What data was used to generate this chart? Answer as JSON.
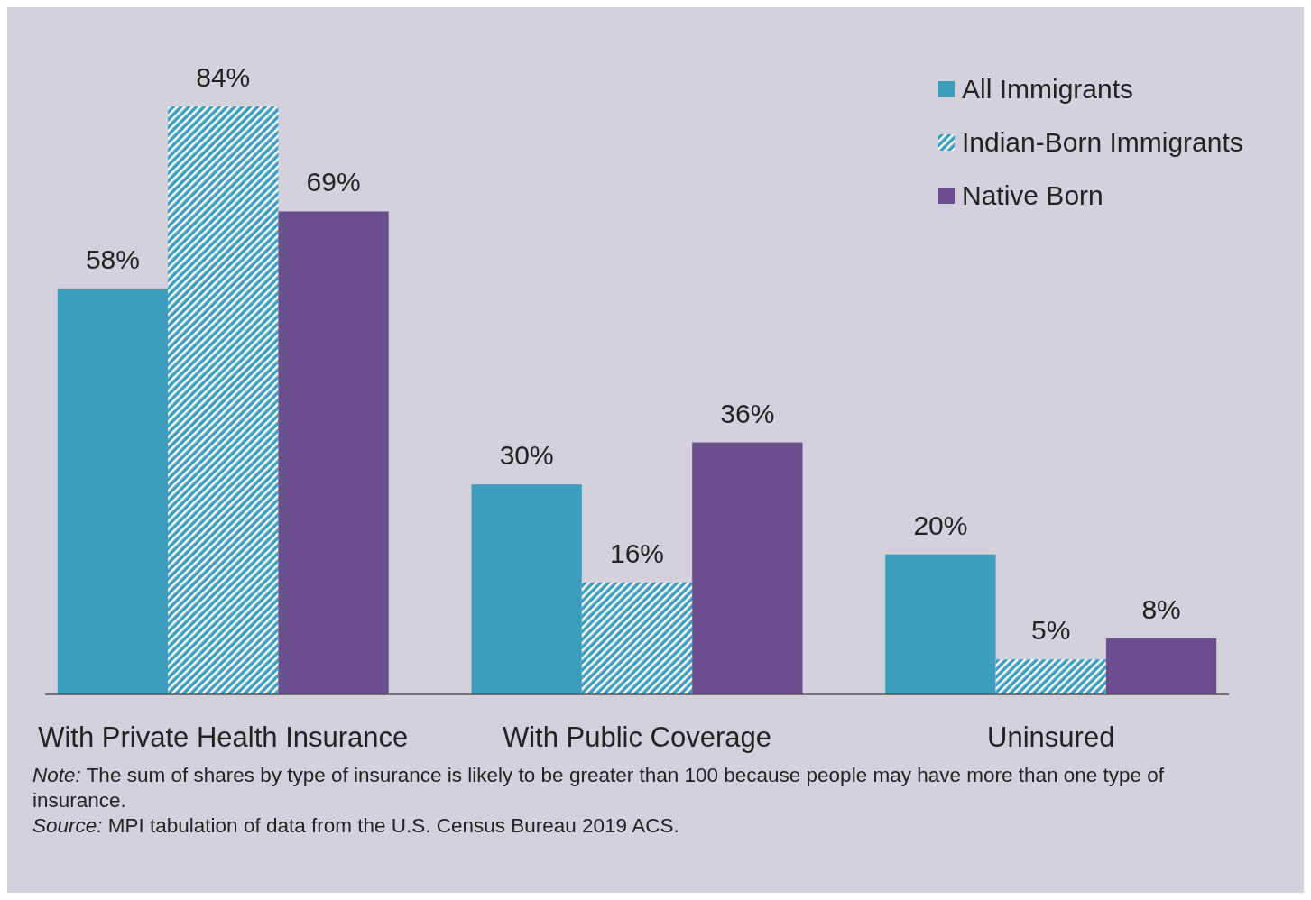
{
  "chart_data": {
    "type": "bar",
    "categories": [
      "With Private Health Insurance",
      "With Public Coverage",
      "Uninsured"
    ],
    "series": [
      {
        "name": "All Immigrants",
        "color": "#3d9dbd",
        "values": [
          58,
          30,
          20
        ],
        "value_labels": [
          "58%",
          "30%",
          "20%"
        ]
      },
      {
        "name": "Indian-Born Immigrants",
        "color": "#3d9dbd",
        "values": [
          84,
          16,
          5
        ],
        "value_labels": [
          "84%",
          "16%",
          "5%"
        ]
      },
      {
        "name": "Native Born",
        "color": "#6b4f8f",
        "values": [
          69,
          36,
          8
        ],
        "value_labels": [
          "69%",
          "36%",
          "8%"
        ]
      }
    ],
    "legend": "top right",
    "annotations": [
      "Note: The sum of shares by type of insurance is likely to be greater than 100 because people may have more than one type of insurance.",
      "Source: MPI tabulation of data from the U.S. Census Bureau 2019 ACS."
    ]
  }
}
